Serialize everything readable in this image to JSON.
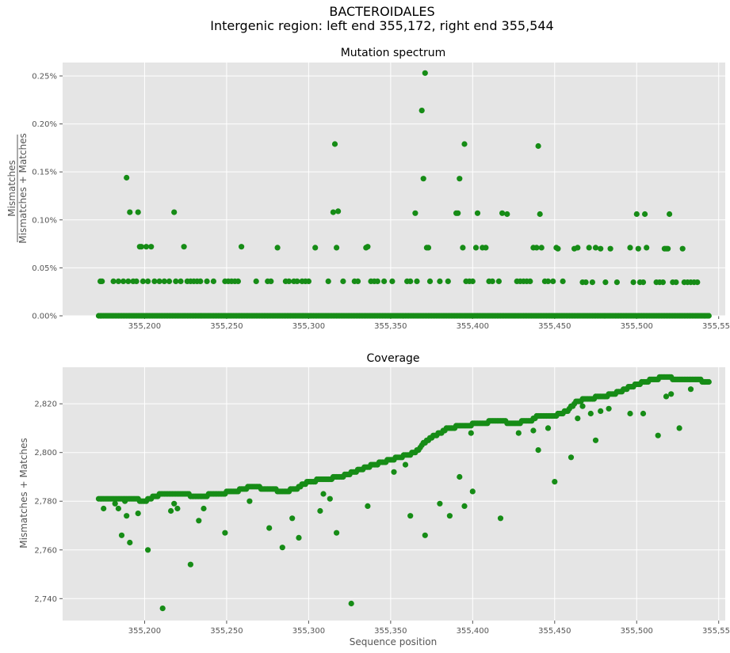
{
  "figure": {
    "suptitle_line1": "BACTEROIDALES",
    "suptitle_line2": "Intergenic region: left end 355,172, right end 355,544"
  },
  "colors": {
    "marker": "#168c16",
    "axes_bg": "#e5e5e5",
    "grid": "#ffffff",
    "text": "#555555"
  },
  "chart_data": [
    {
      "type": "scatter",
      "title": "Mutation spectrum",
      "ylabel_numerator": "Mismatches",
      "ylabel_denominator": "Mismatches + Matches",
      "xlabel": "",
      "xlim": [
        355150,
        355554
      ],
      "ylim": [
        0,
        0.00264
      ],
      "xticks": [
        355200,
        355250,
        355300,
        355350,
        355400,
        355450,
        355500,
        355550
      ],
      "xtick_labels": [
        "355,200",
        "355,250",
        "355,300",
        "355,350",
        "355,400",
        "355,450",
        "355,500",
        "355,550"
      ],
      "yticks": [
        0,
        0.0005,
        0.001,
        0.0015,
        0.002,
        0.0025
      ],
      "ytick_labels": [
        "0.00%",
        "0.05%",
        "0.10%",
        "0.15%",
        "0.20%",
        "0.25%"
      ],
      "grid": true,
      "marker": "circle",
      "baseline": {
        "x_start": 355172,
        "x_end": 355544,
        "y": 0
      },
      "points": [
        [
          355173,
          0.00036
        ],
        [
          355174,
          0.00036
        ],
        [
          355181,
          0.00036
        ],
        [
          355184,
          0.00036
        ],
        [
          355187,
          0.00036
        ],
        [
          355189,
          0.00144
        ],
        [
          355190,
          0.00036
        ],
        [
          355191,
          0.00108
        ],
        [
          355193,
          0.00036
        ],
        [
          355195,
          0.00036
        ],
        [
          355196,
          0.00108
        ],
        [
          355197,
          0.00072
        ],
        [
          355198,
          0.00072
        ],
        [
          355199,
          0.00036
        ],
        [
          355201,
          0.00072
        ],
        [
          355202,
          0.00036
        ],
        [
          355204,
          0.00072
        ],
        [
          355206,
          0.00036
        ],
        [
          355209,
          0.00036
        ],
        [
          355212,
          0.00036
        ],
        [
          355215,
          0.00036
        ],
        [
          355218,
          0.00108
        ],
        [
          355219,
          0.00036
        ],
        [
          355222,
          0.00036
        ],
        [
          355224,
          0.00072
        ],
        [
          355226,
          0.00036
        ],
        [
          355228,
          0.00036
        ],
        [
          355230,
          0.00036
        ],
        [
          355232,
          0.00036
        ],
        [
          355234,
          0.00036
        ],
        [
          355238,
          0.00036
        ],
        [
          355242,
          0.00036
        ],
        [
          355249,
          0.00036
        ],
        [
          355251,
          0.00036
        ],
        [
          355253,
          0.00036
        ],
        [
          355255,
          0.00036
        ],
        [
          355257,
          0.00036
        ],
        [
          355259,
          0.00072
        ],
        [
          355268,
          0.00036
        ],
        [
          355275,
          0.00036
        ],
        [
          355277,
          0.00036
        ],
        [
          355281,
          0.00071
        ],
        [
          355286,
          0.00036
        ],
        [
          355288,
          0.00036
        ],
        [
          355291,
          0.00036
        ],
        [
          355293,
          0.00036
        ],
        [
          355296,
          0.00036
        ],
        [
          355298,
          0.00036
        ],
        [
          355300,
          0.00036
        ],
        [
          355304,
          0.00071
        ],
        [
          355312,
          0.00036
        ],
        [
          355315,
          0.00108
        ],
        [
          355316,
          0.00179
        ],
        [
          355317,
          0.00071
        ],
        [
          355318,
          0.00109
        ],
        [
          355321,
          0.00036
        ],
        [
          355328,
          0.00036
        ],
        [
          355330,
          0.00036
        ],
        [
          355335,
          0.00071
        ],
        [
          355336,
          0.00072
        ],
        [
          355338,
          0.00036
        ],
        [
          355340,
          0.00036
        ],
        [
          355342,
          0.00036
        ],
        [
          355346,
          0.00036
        ],
        [
          355351,
          0.00036
        ],
        [
          355360,
          0.00036
        ],
        [
          355362,
          0.00036
        ],
        [
          355365,
          0.00107
        ],
        [
          355366,
          0.00036
        ],
        [
          355369,
          0.00214
        ],
        [
          355370,
          0.00143
        ],
        [
          355371,
          0.00253
        ],
        [
          355372,
          0.00071
        ],
        [
          355373,
          0.00071
        ],
        [
          355374,
          0.00036
        ],
        [
          355380,
          0.00036
        ],
        [
          355385,
          0.00036
        ],
        [
          355390,
          0.00107
        ],
        [
          355391,
          0.00107
        ],
        [
          355392,
          0.00143
        ],
        [
          355394,
          0.00071
        ],
        [
          355395,
          0.00179
        ],
        [
          355396,
          0.00036
        ],
        [
          355398,
          0.00036
        ],
        [
          355400,
          0.00036
        ],
        [
          355402,
          0.00071
        ],
        [
          355403,
          0.00107
        ],
        [
          355406,
          0.00071
        ],
        [
          355408,
          0.00071
        ],
        [
          355410,
          0.00036
        ],
        [
          355412,
          0.00036
        ],
        [
          355416,
          0.00036
        ],
        [
          355418,
          0.00107
        ],
        [
          355421,
          0.00106
        ],
        [
          355427,
          0.00036
        ],
        [
          355429,
          0.00036
        ],
        [
          355431,
          0.00036
        ],
        [
          355433,
          0.00036
        ],
        [
          355435,
          0.00036
        ],
        [
          355437,
          0.00071
        ],
        [
          355439,
          0.00071
        ],
        [
          355440,
          0.00177
        ],
        [
          355441,
          0.00106
        ],
        [
          355442,
          0.00071
        ],
        [
          355444,
          0.00036
        ],
        [
          355446,
          0.00036
        ],
        [
          355449,
          0.00036
        ],
        [
          355451,
          0.00071
        ],
        [
          355452,
          0.0007
        ],
        [
          355455,
          0.00036
        ],
        [
          355462,
          0.0007
        ],
        [
          355464,
          0.00071
        ],
        [
          355467,
          0.00035
        ],
        [
          355469,
          0.00035
        ],
        [
          355471,
          0.00071
        ],
        [
          355473,
          0.00035
        ],
        [
          355475,
          0.00071
        ],
        [
          355478,
          0.0007
        ],
        [
          355481,
          0.00035
        ],
        [
          355484,
          0.0007
        ],
        [
          355488,
          0.00035
        ],
        [
          355496,
          0.00071
        ],
        [
          355498,
          0.00035
        ],
        [
          355500,
          0.00106
        ],
        [
          355501,
          0.0007
        ],
        [
          355502,
          0.00035
        ],
        [
          355504,
          0.00035
        ],
        [
          355505,
          0.00106
        ],
        [
          355506,
          0.00071
        ],
        [
          355512,
          0.00035
        ],
        [
          355514,
          0.00035
        ],
        [
          355516,
          0.00035
        ],
        [
          355517,
          0.0007
        ],
        [
          355518,
          0.0007
        ],
        [
          355519,
          0.0007
        ],
        [
          355520,
          0.00106
        ],
        [
          355522,
          0.00035
        ],
        [
          355524,
          0.00035
        ],
        [
          355528,
          0.0007
        ],
        [
          355529,
          0.00035
        ],
        [
          355531,
          0.00035
        ],
        [
          355533,
          0.00035
        ],
        [
          355535,
          0.00035
        ],
        [
          355537,
          0.00035
        ]
      ]
    },
    {
      "type": "scatter",
      "title": "Coverage",
      "xlabel": "Sequence position",
      "ylabel": "Mismatches + Matches",
      "xlim": [
        355150,
        355554
      ],
      "ylim": [
        2731,
        2835
      ],
      "xticks": [
        355200,
        355250,
        355300,
        355350,
        355400,
        355450,
        355500,
        355550
      ],
      "xtick_labels": [
        "355,200",
        "355,250",
        "355,300",
        "355,350",
        "355,400",
        "355,450",
        "355,500",
        "355,550"
      ],
      "yticks": [
        2740,
        2760,
        2780,
        2800,
        2820
      ],
      "ytick_labels": [
        "2,740",
        "2,760",
        "2,780",
        "2,800",
        "2,820"
      ],
      "grid": true,
      "marker": "circle",
      "main_trend": [
        [
          355172,
          2781
        ],
        [
          355182,
          2781
        ],
        [
          355192,
          2781
        ],
        [
          355200,
          2780
        ],
        [
          355210,
          2783
        ],
        [
          355222,
          2783
        ],
        [
          355232,
          2782
        ],
        [
          355245,
          2783
        ],
        [
          355255,
          2784
        ],
        [
          355265,
          2786
        ],
        [
          355275,
          2785
        ],
        [
          355285,
          2784
        ],
        [
          355292,
          2785
        ],
        [
          355300,
          2788
        ],
        [
          355310,
          2789
        ],
        [
          355320,
          2790
        ],
        [
          355328,
          2792
        ],
        [
          355340,
          2795
        ],
        [
          355355,
          2798
        ],
        [
          355365,
          2800
        ],
        [
          355372,
          2805
        ],
        [
          355380,
          2808
        ],
        [
          355385,
          2810
        ],
        [
          355395,
          2811
        ],
        [
          355405,
          2812
        ],
        [
          355415,
          2813
        ],
        [
          355425,
          2812
        ],
        [
          355435,
          2813
        ],
        [
          355440,
          2815
        ],
        [
          355450,
          2815
        ],
        [
          355458,
          2817
        ],
        [
          355463,
          2821
        ],
        [
          355470,
          2822
        ],
        [
          355480,
          2823
        ],
        [
          355490,
          2825
        ],
        [
          355500,
          2828
        ],
        [
          355510,
          2830
        ],
        [
          355518,
          2831
        ],
        [
          355525,
          2830
        ],
        [
          355535,
          2830
        ],
        [
          355544,
          2829
        ]
      ],
      "outliers": [
        [
          355175,
          2777
        ],
        [
          355182,
          2779
        ],
        [
          355184,
          2777
        ],
        [
          355186,
          2766
        ],
        [
          355188,
          2780
        ],
        [
          355189,
          2774
        ],
        [
          355191,
          2763
        ],
        [
          355196,
          2775
        ],
        [
          355202,
          2760
        ],
        [
          355211,
          2736
        ],
        [
          355216,
          2776
        ],
        [
          355218,
          2779
        ],
        [
          355220,
          2777
        ],
        [
          355228,
          2754
        ],
        [
          355233,
          2772
        ],
        [
          355236,
          2777
        ],
        [
          355249,
          2767
        ],
        [
          355264,
          2780
        ],
        [
          355276,
          2769
        ],
        [
          355284,
          2761
        ],
        [
          355290,
          2773
        ],
        [
          355294,
          2765
        ],
        [
          355307,
          2776
        ],
        [
          355309,
          2783
        ],
        [
          355313,
          2781
        ],
        [
          355317,
          2767
        ],
        [
          355326,
          2738
        ],
        [
          355336,
          2778
        ],
        [
          355352,
          2792
        ],
        [
          355359,
          2795
        ],
        [
          355362,
          2774
        ],
        [
          355371,
          2766
        ],
        [
          355380,
          2779
        ],
        [
          355386,
          2774
        ],
        [
          355392,
          2790
        ],
        [
          355395,
          2778
        ],
        [
          355399,
          2808
        ],
        [
          355400,
          2784
        ],
        [
          355417,
          2773
        ],
        [
          355428,
          2808
        ],
        [
          355437,
          2809
        ],
        [
          355440,
          2801
        ],
        [
          355446,
          2810
        ],
        [
          355450,
          2788
        ],
        [
          355460,
          2798
        ],
        [
          355464,
          2814
        ],
        [
          355467,
          2819
        ],
        [
          355472,
          2816
        ],
        [
          355475,
          2805
        ],
        [
          355478,
          2817
        ],
        [
          355483,
          2818
        ],
        [
          355496,
          2816
        ],
        [
          355504,
          2816
        ],
        [
          355513,
          2807
        ],
        [
          355518,
          2823
        ],
        [
          355521,
          2824
        ],
        [
          355526,
          2810
        ],
        [
          355533,
          2826
        ]
      ]
    }
  ]
}
